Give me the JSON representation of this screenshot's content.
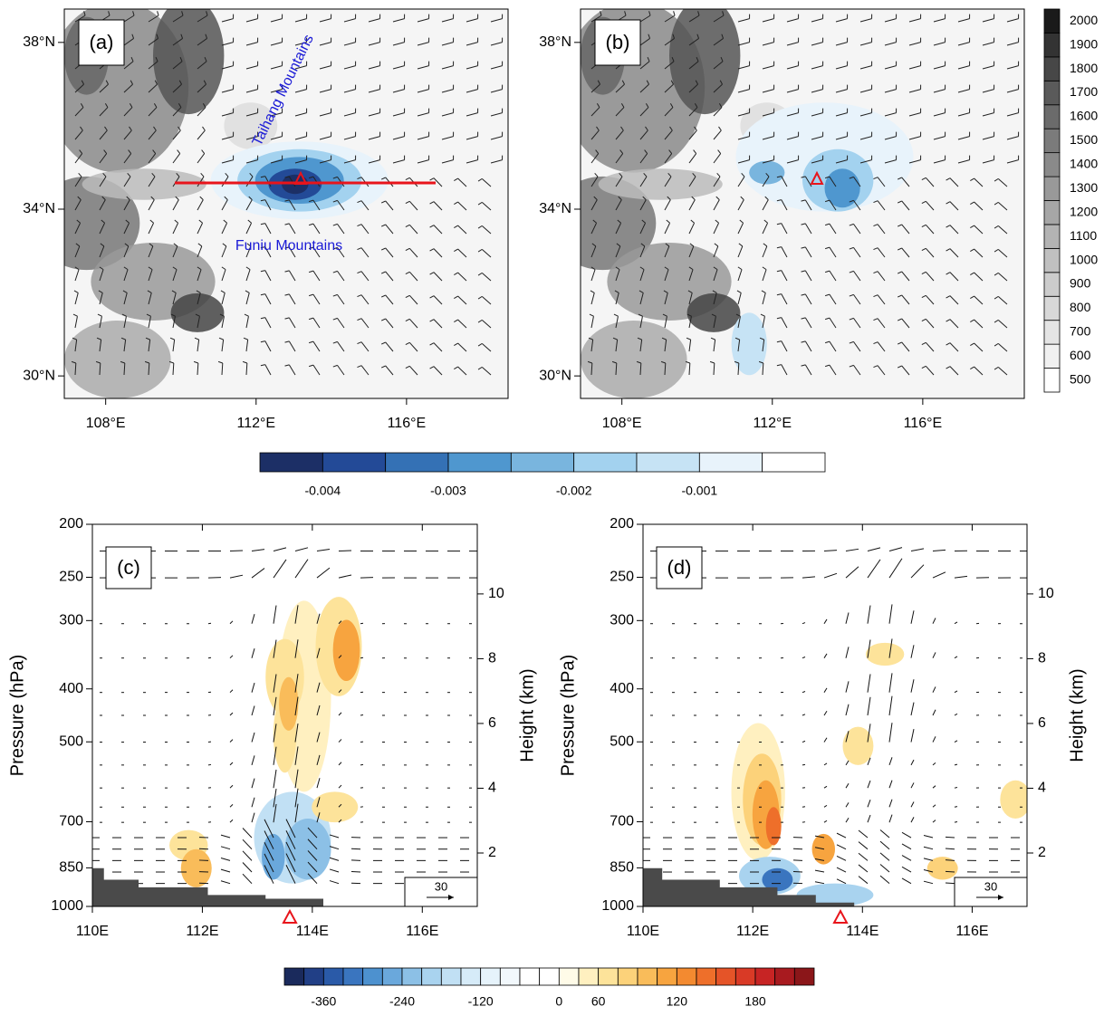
{
  "panels": [
    {
      "label": "(a)",
      "annotations": [
        "Taihang Mountains",
        "Funiu Mountains"
      ],
      "xlim": [
        106.9,
        118.7
      ],
      "xticks": [
        {
          "value": 108,
          "label": "108°E"
        },
        {
          "value": 112,
          "label": "112°E"
        },
        {
          "value": 116,
          "label": "116°E"
        }
      ],
      "ylim": [
        29.46,
        38.8
      ],
      "yticks": [
        {
          "value": 30,
          "label": "30°N"
        },
        {
          "value": 34,
          "label": "34°N"
        },
        {
          "value": 38,
          "label": "38°N"
        }
      ]
    },
    {
      "label": "(b)",
      "xlim": [
        106.9,
        118.7
      ],
      "xticks": [
        {
          "value": 108,
          "label": "108°E"
        },
        {
          "value": 112,
          "label": "112°E"
        },
        {
          "value": 116,
          "label": "116°E"
        }
      ],
      "ylim": [
        29.46,
        38.8
      ],
      "yticks": [
        {
          "value": 30,
          "label": "30°N"
        },
        {
          "value": 34,
          "label": "34°N"
        },
        {
          "value": 38,
          "label": "38°N"
        }
      ]
    },
    {
      "label": "(c)",
      "xlim": [
        110,
        117
      ],
      "xticks": [
        {
          "value": 110,
          "label": "110E"
        },
        {
          "value": 112,
          "label": "112E"
        },
        {
          "value": 114,
          "label": "114E"
        },
        {
          "value": 116,
          "label": "116E"
        }
      ],
      "ylabel": "Pressure (hPa)",
      "ylim": [
        1000,
        200
      ],
      "yticks": [
        200,
        250,
        300,
        400,
        500,
        700,
        850,
        1000
      ],
      "log_scale": true,
      "y2label": "Height (km)",
      "y2lim": [
        0.35,
        12.15
      ],
      "y2ticks": [
        2,
        4,
        6,
        8,
        10
      ],
      "reference_vector": 30
    },
    {
      "label": "(d)",
      "xlim": [
        110,
        117
      ],
      "xticks": [
        {
          "value": 110,
          "label": "110E"
        },
        {
          "value": 112,
          "label": "112E"
        },
        {
          "value": 114,
          "label": "114E"
        },
        {
          "value": 116,
          "label": "116E"
        }
      ],
      "ylabel": "Pressure (hPa)",
      "ylim": [
        1000,
        200
      ],
      "yticks": [
        200,
        250,
        300,
        400,
        500,
        700,
        850,
        1000
      ],
      "log_scale": true,
      "y2label": "Height (km)",
      "y2lim": [
        0.35,
        12.15
      ],
      "y2ticks": [
        2,
        4,
        6,
        8,
        10
      ],
      "reference_vector": 30
    }
  ],
  "colorbars": [
    {
      "ticks": [
        500,
        600,
        700,
        800,
        900,
        1000,
        1100,
        1200,
        1300,
        1400,
        1500,
        1600,
        1700,
        1800,
        1900,
        2000
      ],
      "colors": [
        "#ffffff",
        "#f0f0f0",
        "#e4e4e4",
        "#d8d8d8",
        "#cccccc",
        "#c0c0c0",
        "#b3b3b3",
        "#a6a6a6",
        "#999999",
        "#8a8a8a",
        "#7b7b7b",
        "#6b6b6b",
        "#5a5a5a",
        "#474747",
        "#333333",
        "#1a1a1a"
      ]
    },
    {
      "levels": [
        -0.0045,
        -0.004,
        -0.0035,
        -0.003,
        -0.0025,
        -0.002,
        -0.0015,
        -0.001,
        -0.0005,
        0
      ],
      "ticks": [
        -0.004,
        -0.003,
        -0.002,
        -0.001
      ],
      "colors": [
        "#1c2f66",
        "#234a97",
        "#3471b5",
        "#4f97cf",
        "#79b5de",
        "#a3d2ef",
        "#c6e3f5",
        "#e8f3fb",
        "#ffffff"
      ]
    },
    {
      "levels": [
        -420,
        -390,
        -360,
        -330,
        -300,
        -270,
        -240,
        -210,
        -180,
        -150,
        -120,
        -90,
        -60,
        -30,
        0,
        30,
        60,
        75,
        90,
        105,
        120,
        135,
        150,
        165,
        180,
        195,
        210,
        225
      ],
      "ticks": [
        -360,
        -240,
        -120,
        0,
        60,
        120,
        180
      ],
      "colors": [
        "#1a2a5c",
        "#213f86",
        "#2a5aa8",
        "#3a75bf",
        "#4d91cf",
        "#6aa8dc",
        "#8cc0e6",
        "#a9d3ef",
        "#c1e0f4",
        "#d6ebf8",
        "#e6f3fb",
        "#f2f8fc",
        "#ffffff",
        "#ffffff",
        "#fffbe8",
        "#fff0c0",
        "#fde39a",
        "#fcd27a",
        "#f9bc5a",
        "#f7a43f",
        "#f38a30",
        "#ee6f2a",
        "#e55428",
        "#d93a26",
        "#c72424",
        "#a81a1f",
        "#8b1619"
      ]
    }
  ]
}
